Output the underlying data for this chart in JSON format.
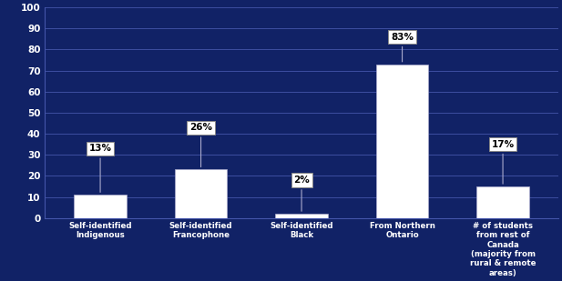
{
  "categories": [
    "Self-identified\nIndigenous",
    "Self-identified\nFrancophone",
    "Self-identified\nBlack",
    "From Northern\nOntario",
    "# of students\nfrom rest of\nCanada\n(majority from\nrural & remote\nareas)"
  ],
  "bar_heights": [
    11,
    23,
    2,
    73,
    15
  ],
  "labels": [
    "13%",
    "26%",
    "2%",
    "83%",
    "17%"
  ],
  "bar_color": "#FFFFFF",
  "bg_color": "#112266",
  "text_color": "#FFFFFF",
  "label_box_color": "#FFFFFF",
  "label_text_color": "#000000",
  "ylim": [
    0,
    100
  ],
  "yticks": [
    0,
    10,
    20,
    30,
    40,
    50,
    60,
    70,
    80,
    90,
    100
  ],
  "grid_color": "#4455AA",
  "label_box_offsets": [
    22,
    20,
    16,
    13,
    20
  ]
}
